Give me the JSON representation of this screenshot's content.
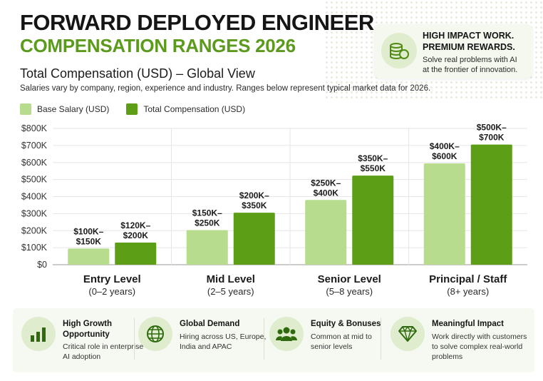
{
  "header": {
    "title_line1": "FORWARD DEPLOYED ENGINEER",
    "title_line2": "COMPENSATION RANGES 2026",
    "subtitle": "Total Compensation (USD) – Global View",
    "description": "Salaries vary by company, region, experience and industry. Ranges below represent typical market data for 2026."
  },
  "callout": {
    "icon": "coins-icon",
    "title_line1": "HIGH IMPACT WORK.",
    "title_line2": "PREMIUM REWARDS.",
    "text_line1": "Solve real problems with AI",
    "text_line2": "at the frontier of innovation."
  },
  "colors": {
    "base": "#b7dc8d",
    "total": "#5c9e16",
    "accent": "#5b9a1c"
  },
  "chart_data": {
    "type": "bar",
    "categories": [
      "Entry Level",
      "Mid Level",
      "Senior Level",
      "Principal / Staff"
    ],
    "category_sublabels": [
      "(0–2 years)",
      "(2–5 years)",
      "(5–8 years)",
      "(8+ years)"
    ],
    "series": [
      {
        "name": "Base Salary (USD)",
        "values": [
          95,
          203,
          380,
          595
        ],
        "labels": [
          [
            "$100K–",
            "$150K"
          ],
          [
            "$150K–",
            "$250K"
          ],
          [
            "$250K–",
            "$400K"
          ],
          [
            "$400K–",
            "$600K"
          ]
        ]
      },
      {
        "name": "Total Compensation (USD)",
        "values": [
          130,
          305,
          523,
          705
        ],
        "labels": [
          [
            "$120K–",
            "$200K"
          ],
          [
            "$200K–",
            "$350K"
          ],
          [
            "$350K–",
            "$550K"
          ],
          [
            "$500K–",
            "$700K"
          ]
        ]
      }
    ],
    "yticks": [
      "$0",
      "$100K",
      "$200K",
      "$300K",
      "$400K",
      "$500K",
      "$600K",
      "$700K",
      "$800K"
    ],
    "ylim": [
      0,
      800
    ],
    "grid": true,
    "legend": "top-left"
  },
  "features": [
    {
      "icon": "bar-chart-icon",
      "title_lines": [
        "High Growth",
        "Opportunity"
      ],
      "desc_lines": [
        "Critical role in enterprise",
        "AI adoption"
      ]
    },
    {
      "icon": "globe-icon",
      "title_lines": [
        "Global Demand"
      ],
      "desc_lines": [
        "Hiring across US, Europe,",
        "India and APAC"
      ]
    },
    {
      "icon": "team-icon",
      "title_lines": [
        "Equity & Bonuses"
      ],
      "desc_lines": [
        "Common at mid to",
        "senior levels"
      ]
    },
    {
      "icon": "diamond-icon",
      "title_lines": [
        "Meaningful Impact"
      ],
      "desc_lines": [
        "Work directly with customers",
        "to solve complex real-world",
        "problems"
      ]
    }
  ]
}
